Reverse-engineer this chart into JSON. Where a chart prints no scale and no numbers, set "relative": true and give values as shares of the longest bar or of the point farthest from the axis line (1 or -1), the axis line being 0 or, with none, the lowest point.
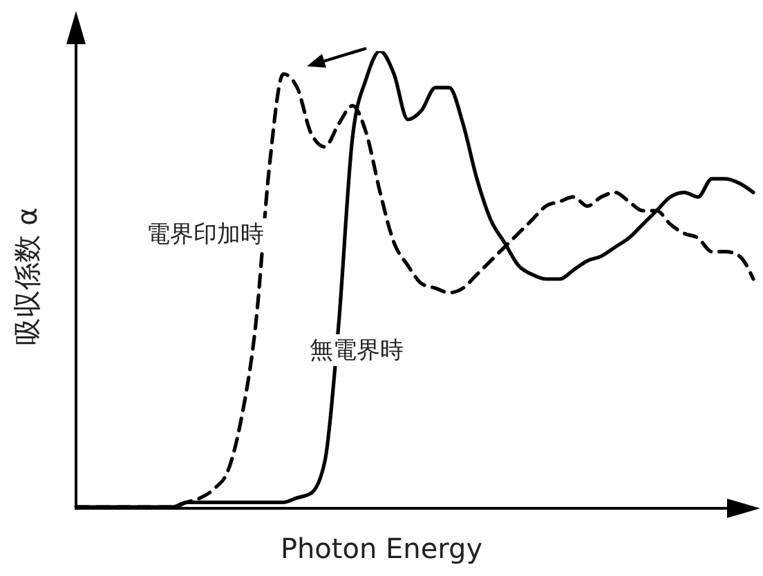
{
  "chart_data": {
    "type": "line",
    "relative": true,
    "xlabel": "Photon Energy",
    "ylabel": "吸収係数 α",
    "categories": [
      null,
      null,
      null,
      null,
      null,
      null,
      null,
      null,
      null,
      null,
      null,
      null,
      null,
      null,
      null,
      null,
      null,
      null,
      null,
      null,
      null,
      null,
      null,
      null,
      null,
      null,
      null,
      null,
      null,
      null,
      null,
      null,
      null,
      null,
      null,
      null,
      null,
      null,
      null,
      null,
      null,
      null,
      null,
      null,
      null,
      null,
      null,
      null,
      null,
      null
    ],
    "series": [
      {
        "name": "無電界時",
        "color": "#000000",
        "line_style": "solid",
        "values": [
          0,
          0,
          0,
          0,
          0,
          0,
          0,
          0,
          0.01,
          0.01,
          0.01,
          0.01,
          0.01,
          0.01,
          0.01,
          0.01,
          0.02,
          0.03,
          0.1,
          0.4,
          0.81,
          0.94,
          1.0,
          0.95,
          0.85,
          0.87,
          0.92,
          0.92,
          0.84,
          0.72,
          0.63,
          0.58,
          0.53,
          0.51,
          0.5,
          0.5,
          0.52,
          0.54,
          0.55,
          0.57,
          0.59,
          0.62,
          0.65,
          0.68,
          0.69,
          0.68,
          0.72,
          0.72,
          0.71,
          0.69
        ]
      },
      {
        "name": "電界印加時",
        "color": "#000000",
        "line_style": "dashed",
        "values": [
          0,
          0,
          0,
          0,
          0,
          0,
          0,
          0,
          0.01,
          0.02,
          0.04,
          0.08,
          0.2,
          0.4,
          0.75,
          0.95,
          0.92,
          0.82,
          0.79,
          0.84,
          0.88,
          0.82,
          0.69,
          0.58,
          0.53,
          0.49,
          0.48,
          0.47,
          0.48,
          0.51,
          0.54,
          0.57,
          0.6,
          0.63,
          0.66,
          0.67,
          0.68,
          0.66,
          0.68,
          0.69,
          0.67,
          0.65,
          0.65,
          0.62,
          0.6,
          0.59,
          0.56,
          0.56,
          0.55,
          0.5
        ]
      }
    ],
    "grid": false,
    "legend": false,
    "marker": "none"
  }
}
